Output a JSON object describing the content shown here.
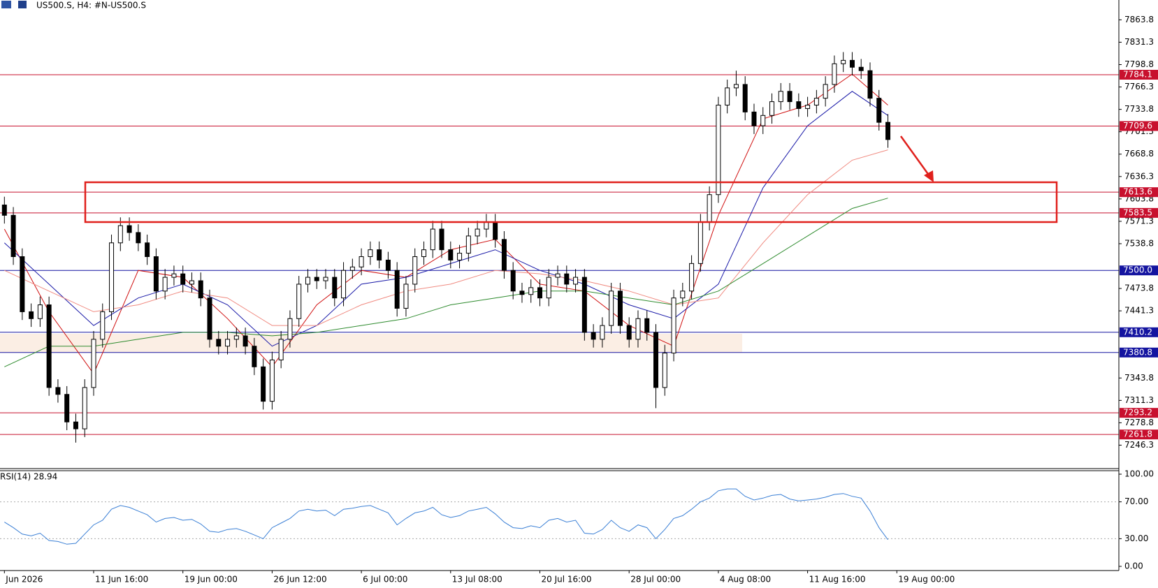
{
  "chart_data": {
    "type": "candlestick",
    "title": "US500.S, H4:  #N-US500.S",
    "ylim": [
      7214.3,
      7892.6
    ],
    "yticks": [
      7863.8,
      7831.3,
      7798.8,
      7766.3,
      7733.8,
      7701.3,
      7668.8,
      7636.3,
      7603.8,
      7571.3,
      7538.8,
      7473.8,
      7441.3,
      7343.8,
      7311.3,
      7278.8,
      7246.3
    ],
    "x_labels": [
      "Jun 2026",
      "11 Jun 16:00",
      "19 Jun 00:00",
      "26 Jun 12:00",
      "6 Jul 00:00",
      "13 Jul 08:00",
      "20 Jul 16:00",
      "28 Jul 00:00",
      "4 Aug 08:00",
      "11 Aug 16:00",
      "19 Aug 00:00"
    ],
    "open": [
      7595,
      7580,
      7520,
      7440,
      7430,
      7450,
      7330,
      7320,
      7280,
      7270,
      7330,
      7400,
      7440,
      7540,
      7565,
      7555,
      7540,
      7520,
      7470,
      7490,
      7495,
      7480,
      7485,
      7460,
      7400,
      7390,
      7400,
      7405,
      7390,
      7360,
      7310,
      7370,
      7400,
      7430,
      7480,
      7490,
      7485,
      7490,
      7460,
      7500,
      7505,
      7520,
      7530,
      7515,
      7500,
      7445,
      7480,
      7520,
      7530,
      7560,
      7530,
      7515,
      7525,
      7550,
      7560,
      7570,
      7545,
      7500,
      7470,
      7465,
      7475,
      7460,
      7490,
      7495,
      7480,
      7490,
      7410,
      7400,
      7420,
      7470,
      7420,
      7400,
      7430,
      7410,
      7330,
      7380,
      7460,
      7470,
      7510,
      7570,
      7610,
      7740,
      7765,
      7770,
      7730,
      7710,
      7725,
      7745,
      7760,
      7745,
      7735,
      7740,
      7750,
      7770,
      7800,
      7805,
      7795,
      7790,
      7750,
      7715
    ],
    "high": [
      7607,
      7592,
      7532,
      7452,
      7462,
      7462,
      7342,
      7332,
      7292,
      7342,
      7412,
      7452,
      7552,
      7577,
      7577,
      7567,
      7552,
      7532,
      7502,
      7507,
      7507,
      7497,
      7497,
      7472,
      7412,
      7412,
      7417,
      7417,
      7402,
      7372,
      7382,
      7412,
      7442,
      7492,
      7502,
      7502,
      7502,
      7502,
      7512,
      7517,
      7532,
      7542,
      7542,
      7527,
      7512,
      7492,
      7532,
      7542,
      7572,
      7572,
      7542,
      7537,
      7562,
      7572,
      7582,
      7582,
      7557,
      7512,
      7482,
      7487,
      7487,
      7502,
      7507,
      7507,
      7502,
      7502,
      7422,
      7432,
      7482,
      7482,
      7432,
      7442,
      7442,
      7422,
      7392,
      7472,
      7482,
      7522,
      7582,
      7622,
      7752,
      7777,
      7790,
      7782,
      7742,
      7737,
      7757,
      7772,
      7772,
      7757,
      7752,
      7762,
      7782,
      7812,
      7817,
      7817,
      7807,
      7802,
      7762,
      7727
    ],
    "low": [
      7568,
      7508,
      7428,
      7418,
      7418,
      7318,
      7308,
      7268,
      7250,
      7258,
      7318,
      7388,
      7428,
      7528,
      7543,
      7528,
      7508,
      7458,
      7458,
      7478,
      7468,
      7468,
      7448,
      7388,
      7378,
      7378,
      7388,
      7378,
      7348,
      7298,
      7298,
      7358,
      7388,
      7418,
      7468,
      7473,
      7473,
      7448,
      7448,
      7488,
      7493,
      7508,
      7503,
      7488,
      7433,
      7433,
      7468,
      7508,
      7518,
      7518,
      7503,
      7503,
      7513,
      7538,
      7548,
      7533,
      7488,
      7458,
      7453,
      7453,
      7448,
      7448,
      7478,
      7468,
      7468,
      7398,
      7388,
      7388,
      7408,
      7408,
      7388,
      7388,
      7398,
      7300,
      7318,
      7368,
      7448,
      7458,
      7498,
      7558,
      7598,
      7728,
      7753,
      7718,
      7698,
      7698,
      7713,
      7733,
      7733,
      7723,
      7723,
      7728,
      7738,
      7758,
      7788,
      7783,
      7778,
      7738,
      7703,
      7678
    ],
    "close": [
      7580,
      7520,
      7440,
      7430,
      7450,
      7330,
      7320,
      7280,
      7270,
      7330,
      7400,
      7440,
      7540,
      7565,
      7555,
      7540,
      7520,
      7470,
      7490,
      7495,
      7480,
      7485,
      7460,
      7400,
      7390,
      7400,
      7405,
      7390,
      7360,
      7310,
      7370,
      7400,
      7430,
      7480,
      7490,
      7485,
      7490,
      7460,
      7500,
      7505,
      7520,
      7530,
      7515,
      7500,
      7445,
      7480,
      7520,
      7530,
      7560,
      7530,
      7515,
      7525,
      7550,
      7560,
      7570,
      7545,
      7500,
      7470,
      7465,
      7475,
      7460,
      7490,
      7495,
      7480,
      7490,
      7410,
      7400,
      7420,
      7470,
      7420,
      7400,
      7430,
      7410,
      7330,
      7380,
      7460,
      7470,
      7510,
      7570,
      7610,
      7740,
      7765,
      7770,
      7730,
      7710,
      7725,
      7745,
      7760,
      7745,
      7735,
      7740,
      7750,
      7770,
      7800,
      7805,
      7795,
      7790,
      7750,
      7715,
      7690
    ],
    "ma_x": [
      0,
      5,
      10,
      15,
      20,
      25,
      30,
      35,
      40,
      45,
      50,
      55,
      60,
      65,
      70,
      75,
      80,
      85,
      90,
      95,
      99
    ],
    "moving_averages": [
      {
        "color": "#d01010",
        "values": [
          7560,
          7440,
          7350,
          7500,
          7490,
          7430,
          7360,
          7450,
          7500,
          7490,
          7530,
          7545,
          7480,
          7470,
          7420,
          7390,
          7580,
          7720,
          7740,
          7785,
          7740
        ]
      },
      {
        "color": "#1a1aa8",
        "values": [
          7540,
          7480,
          7420,
          7460,
          7480,
          7450,
          7390,
          7420,
          7480,
          7490,
          7510,
          7530,
          7500,
          7480,
          7450,
          7430,
          7480,
          7620,
          7710,
          7760,
          7725
        ]
      },
      {
        "color": "#f08a80",
        "values": [
          7500,
          7470,
          7440,
          7450,
          7470,
          7460,
          7420,
          7420,
          7450,
          7470,
          7480,
          7500,
          7495,
          7485,
          7470,
          7450,
          7460,
          7540,
          7610,
          7660,
          7675
        ]
      },
      {
        "color": "#2e8b2e",
        "values": [
          7360,
          7390,
          7390,
          7400,
          7410,
          7410,
          7405,
          7410,
          7420,
          7430,
          7450,
          7460,
          7470,
          7470,
          7460,
          7450,
          7470,
          7510,
          7550,
          7590,
          7605
        ]
      }
    ],
    "levels": [
      {
        "value": 7784.1,
        "color": "#c8102e"
      },
      {
        "value": 7709.6,
        "color": "#c8102e"
      },
      {
        "value": 7613.6,
        "color": "#c8102e"
      },
      {
        "value": 7583.5,
        "color": "#c8102e"
      },
      {
        "value": {
          "value": 7500.0,
          "label": "7500.0"
        },
        "color": "#1414a0"
      },
      {
        "value": 7410.2,
        "color": "#1414a0"
      },
      {
        "value": 7380.8,
        "color": "#1414a0"
      },
      {
        "value": 7293.2,
        "color": "#c8102e"
      },
      {
        "value": 7261.8,
        "color": "#c8102e"
      }
    ],
    "rsi": {
      "label": "RSI(14) 28.94",
      "color": "#3a7fd5",
      "ylim": [
        0,
        100
      ],
      "yticks": [
        {
          "value": 100,
          "label": "100.00"
        },
        {
          "value": 70,
          "label": "70.00"
        },
        {
          "value": 30,
          "label": "30.00"
        },
        {
          "value": 0,
          "label": "0.00"
        }
      ],
      "values": [
        48,
        42,
        35,
        33,
        36,
        28,
        27,
        24,
        25,
        35,
        45,
        50,
        62,
        66,
        64,
        60,
        56,
        48,
        52,
        53,
        50,
        51,
        46,
        38,
        37,
        40,
        41,
        38,
        34,
        30,
        42,
        47,
        52,
        60,
        62,
        60,
        61,
        55,
        62,
        63,
        65,
        66,
        62,
        58,
        45,
        52,
        58,
        60,
        64,
        56,
        53,
        55,
        60,
        62,
        64,
        57,
        48,
        42,
        41,
        44,
        42,
        50,
        52,
        48,
        50,
        36,
        35,
        40,
        50,
        42,
        38,
        45,
        42,
        30,
        40,
        52,
        55,
        62,
        70,
        74,
        82,
        84,
        84,
        76,
        72,
        74,
        77,
        78,
        73,
        71,
        72,
        73,
        75,
        78,
        79,
        76,
        74,
        60,
        42,
        28.94
      ]
    }
  }
}
